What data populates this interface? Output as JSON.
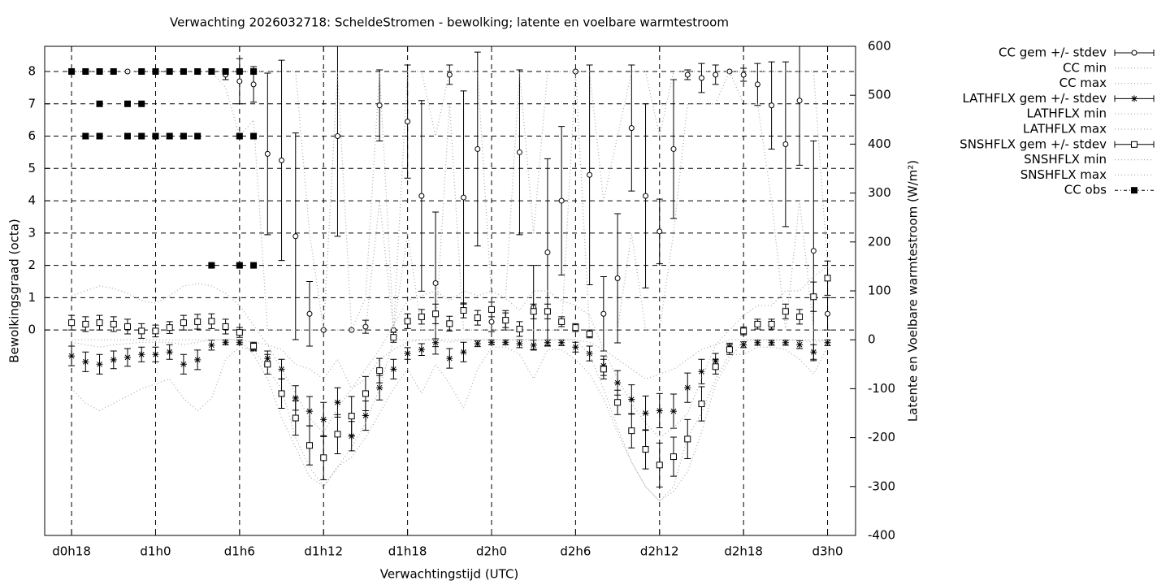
{
  "chart_data": {
    "type": "errorbar-line",
    "title": "Verwachting 2026032718: ScheldeStromen - bewolking; latente en voelbare warmtestroom",
    "x_label": "Verwachtingstijd (UTC)",
    "y_label": "Bewolkingsgraad (octa)",
    "y2_label": "Latente en Voelbare warmtestroom (W/m²)",
    "xlim": [
      -1.92,
      56.0
    ],
    "xticks": [
      {
        "value": 0,
        "label": "d0h18"
      },
      {
        "value": 6,
        "label": "d1h0"
      },
      {
        "value": 12,
        "label": "d1h6"
      },
      {
        "value": 18,
        "label": "d1h12"
      },
      {
        "value": 24,
        "label": "d1h18"
      },
      {
        "value": 30,
        "label": "d2h0"
      },
      {
        "value": 36,
        "label": "d2h6"
      },
      {
        "value": 42,
        "label": "d2h12"
      },
      {
        "value": 48,
        "label": "d2h18"
      },
      {
        "value": 54,
        "label": "d3h0"
      }
    ],
    "ylim": [
      -6.36,
      8.78
    ],
    "yticks": [
      0,
      1,
      2,
      3,
      4,
      5,
      6,
      7,
      8
    ],
    "y2lim": [
      -400,
      600
    ],
    "y2ticks": [
      -400,
      -300,
      -200,
      -100,
      0,
      100,
      200,
      300,
      400,
      500,
      600
    ],
    "grid": true,
    "legend": "outside-top-right",
    "x": [
      0,
      1,
      2,
      3,
      4,
      5,
      6,
      7,
      8,
      9,
      10,
      11,
      12,
      13,
      14,
      15,
      16,
      17,
      18,
      19,
      20,
      21,
      22,
      23,
      24,
      25,
      26,
      27,
      28,
      29,
      30,
      31,
      32,
      33,
      34,
      35,
      36,
      37,
      38,
      39,
      40,
      41,
      42,
      43,
      44,
      45,
      46,
      47,
      48,
      49,
      50,
      51,
      52,
      53,
      54
    ],
    "series": [
      {
        "name": "CC gem +/- stdev",
        "color": "#000000",
        "style": "errorbars",
        "marker": "circle",
        "axis": "y",
        "values": [
          8,
          8,
          8,
          8,
          8,
          8,
          8,
          8,
          8,
          8,
          8,
          7.9,
          7.7,
          7.6,
          5.45,
          5.25,
          2.9,
          0.5,
          0,
          6.0,
          0,
          0.1,
          6.95,
          0,
          6.45,
          4.15,
          1.45,
          7.9,
          4.1,
          5.6,
          0.25,
          0.3,
          5.5,
          0.7,
          2.4,
          4.0,
          8.0,
          4.8,
          0.5,
          1.6,
          6.25,
          4.15,
          3.05,
          5.6,
          7.9,
          7.8,
          7.9,
          8.0,
          7.9,
          7.6,
          6.95,
          5.75,
          7.1,
          2.45,
          0.5
        ],
        "errors": [
          0,
          0,
          0,
          0,
          0,
          0,
          0,
          0,
          0,
          0,
          0,
          0.15,
          0.7,
          0.55,
          2.5,
          3.1,
          3.2,
          1.0,
          0,
          3.1,
          0,
          0.2,
          1.1,
          0,
          1.75,
          2.95,
          2.2,
          0.3,
          3.3,
          3.0,
          0.3,
          0.3,
          2.55,
          1.3,
          2.9,
          2.3,
          0,
          3.4,
          1.15,
          2.0,
          1.95,
          2.85,
          1.0,
          2.15,
          0.15,
          0.45,
          0.3,
          0,
          0.2,
          0.65,
          1.35,
          2.55,
          2.0,
          3.4,
          0.5
        ]
      },
      {
        "name": "CC min",
        "color": "#aaaaaa",
        "style": "dotted",
        "axis": "y",
        "values": [
          8,
          8,
          8,
          8,
          8,
          8,
          8,
          8,
          8,
          8,
          8,
          7.5,
          6,
          6.5,
          0,
          0,
          0,
          0,
          0,
          0,
          0,
          0,
          4,
          0,
          3,
          0,
          0,
          7,
          0,
          0,
          0,
          0,
          0,
          0,
          0,
          0,
          8,
          0,
          0,
          0,
          3,
          0,
          0,
          3,
          7,
          7,
          7,
          8,
          7,
          7,
          4,
          0,
          4,
          0,
          0
        ]
      },
      {
        "name": "CC max",
        "color": "#aaaaaa",
        "style": "dotted",
        "axis": "y",
        "values": [
          8,
          8,
          8,
          8,
          8,
          8,
          8,
          8,
          8,
          8,
          8,
          8,
          8,
          8,
          8,
          8,
          8,
          3,
          0,
          8,
          0,
          1,
          8,
          0,
          8,
          8,
          6,
          8,
          8,
          8,
          1,
          1,
          8,
          3,
          8,
          8,
          8,
          8,
          4,
          6,
          8,
          8,
          6,
          8,
          8,
          8,
          8,
          8,
          8,
          8,
          8,
          8,
          8,
          8,
          2
        ]
      },
      {
        "name": "LATHFLX gem +/- stdev",
        "color": "#000000",
        "style": "errorbars",
        "marker": "star",
        "axis": "y2",
        "values": [
          -33,
          -45,
          -50,
          -41,
          -36,
          -30,
          -30,
          -25,
          -50,
          -41,
          -11,
          -5,
          -5,
          -15,
          -38,
          -60,
          -119,
          -146,
          -163,
          -128,
          -197,
          -155,
          -98,
          -60,
          -28,
          -20,
          -6,
          -38,
          -25,
          -8,
          -5,
          -5,
          -8,
          -11,
          -6,
          -6,
          -15,
          -28,
          -53,
          -88,
          -122,
          -150,
          -145,
          -146,
          -98,
          -65,
          -43,
          -15,
          -10,
          -6,
          -6,
          -6,
          -10,
          -25,
          -6
        ],
        "errors": [
          20,
          20,
          20,
          18,
          18,
          15,
          15,
          15,
          20,
          20,
          10,
          5,
          5,
          8,
          15,
          20,
          25,
          30,
          35,
          30,
          30,
          30,
          25,
          20,
          12,
          12,
          8,
          20,
          20,
          6,
          5,
          5,
          8,
          10,
          6,
          6,
          10,
          15,
          20,
          25,
          30,
          35,
          35,
          35,
          30,
          25,
          15,
          8,
          6,
          5,
          5,
          5,
          8,
          15,
          6
        ]
      },
      {
        "name": "LATHFLX min",
        "color": "#aaaaaa",
        "style": "dotted",
        "axis": "y2",
        "values": [
          -100,
          -130,
          -145,
          -130,
          -115,
          -100,
          -90,
          -80,
          -120,
          -145,
          -120,
          -40,
          -15,
          -20,
          -60,
          -100,
          -200,
          -260,
          -300,
          -260,
          -240,
          -200,
          -150,
          -100,
          -60,
          -110,
          -50,
          -90,
          -140,
          -60,
          -15,
          -15,
          -30,
          -80,
          -20,
          -20,
          -40,
          -70,
          -120,
          -190,
          -250,
          -300,
          -330,
          -300,
          -200,
          -150,
          -80,
          -30,
          -30,
          -15,
          -15,
          -20,
          -40,
          -70,
          -15
        ]
      },
      {
        "name": "LATHFLX max",
        "color": "#aaaaaa",
        "style": "dotted",
        "axis": "y2",
        "values": [
          -5,
          -10,
          -15,
          -10,
          -8,
          -5,
          -5,
          -5,
          -10,
          -5,
          0,
          0,
          0,
          -5,
          -10,
          -20,
          -50,
          -60,
          -80,
          -40,
          -100,
          -80,
          -40,
          -20,
          -5,
          0,
          0,
          -5,
          0,
          0,
          0,
          0,
          0,
          0,
          0,
          0,
          0,
          -5,
          -20,
          -40,
          -60,
          -80,
          -70,
          -60,
          -40,
          -20,
          -10,
          0,
          0,
          0,
          0,
          0,
          0,
          -5,
          0
        ]
      },
      {
        "name": "SNSHFLX gem +/- stdev",
        "color": "#000000",
        "style": "errorbars",
        "marker": "square",
        "axis": "y2",
        "values": [
          35,
          32,
          35,
          32,
          27,
          18,
          18,
          25,
          35,
          37,
          38,
          27,
          15,
          -13,
          -50,
          -110,
          -160,
          -216,
          -241,
          -193,
          -156,
          -110,
          -63,
          5,
          38,
          47,
          53,
          33,
          60,
          45,
          62,
          40,
          22,
          58,
          58,
          37,
          25,
          12,
          -60,
          -128,
          -186,
          -224,
          -256,
          -239,
          -203,
          -131,
          -55,
          -20,
          18,
          32,
          32,
          58,
          47,
          88,
          126
        ],
        "errors": [
          15,
          15,
          15,
          15,
          15,
          15,
          12,
          12,
          15,
          15,
          15,
          15,
          10,
          8,
          20,
          30,
          35,
          40,
          45,
          40,
          40,
          35,
          25,
          10,
          15,
          15,
          20,
          15,
          15,
          15,
          15,
          15,
          15,
          15,
          15,
          10,
          8,
          8,
          20,
          25,
          35,
          40,
          45,
          40,
          40,
          35,
          15,
          10,
          8,
          10,
          10,
          15,
          15,
          30,
          35
        ]
      },
      {
        "name": "SNSHFLX min",
        "color": "#aaaaaa",
        "style": "dotted",
        "axis": "y2",
        "values": [
          0,
          0,
          0,
          0,
          0,
          0,
          0,
          0,
          0,
          0,
          0,
          0,
          0,
          -30,
          -80,
          -160,
          -220,
          -280,
          -300,
          -260,
          -220,
          -170,
          -100,
          0,
          0,
          0,
          0,
          0,
          0,
          0,
          0,
          0,
          0,
          0,
          0,
          0,
          0,
          -30,
          -100,
          -180,
          -250,
          -300,
          -330,
          -310,
          -270,
          -190,
          -90,
          -40,
          0,
          0,
          0,
          0,
          0,
          0,
          0
        ]
      },
      {
        "name": "SNSHFLX max",
        "color": "#aaaaaa",
        "style": "dotted",
        "axis": "y2",
        "values": [
          90,
          100,
          110,
          105,
          95,
          80,
          75,
          90,
          110,
          115,
          110,
          95,
          70,
          30,
          -10,
          -60,
          -110,
          -160,
          -190,
          -140,
          -100,
          -60,
          -20,
          30,
          80,
          90,
          100,
          80,
          100,
          90,
          100,
          85,
          60,
          100,
          100,
          80,
          70,
          50,
          -20,
          -80,
          -130,
          -170,
          -200,
          -180,
          -150,
          -80,
          -10,
          20,
          50,
          70,
          70,
          100,
          100,
          130,
          150
        ]
      },
      {
        "name": "CC obs",
        "color": "#000000",
        "style": "points",
        "marker": "filled-square",
        "axis": "y",
        "x": [
          0,
          1,
          2,
          3,
          5,
          6,
          7,
          8,
          9,
          10,
          11,
          12,
          13,
          2,
          4,
          5,
          1,
          2,
          4,
          5,
          6,
          7,
          8,
          9,
          12,
          13,
          10,
          12,
          13
        ],
        "values": [
          8,
          8,
          8,
          8,
          8,
          8,
          8,
          8,
          8,
          8,
          8,
          8,
          8,
          7,
          7,
          7,
          6,
          6,
          6,
          6,
          6,
          6,
          6,
          6,
          6,
          6,
          2,
          2,
          2
        ]
      }
    ]
  }
}
